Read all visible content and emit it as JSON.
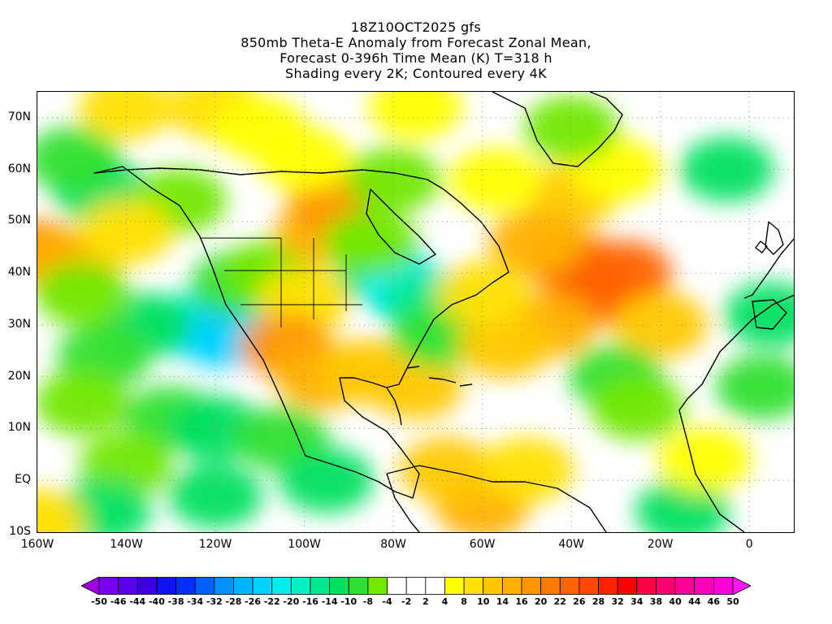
{
  "titles": [
    "18Z10OCT2025 gfs",
    "850mb Theta-E Anomaly from Forecast Zonal Mean,",
    "Forecast 0-396h Time Mean (K) T=318 h",
    "Shading every 2K; Contoured every 4K"
  ],
  "map": {
    "lon_range": [
      -160,
      10
    ],
    "lat_range": [
      -10,
      75
    ],
    "lat_ticks": [
      {
        "value": 70,
        "label": "70N"
      },
      {
        "value": 60,
        "label": "60N"
      },
      {
        "value": 50,
        "label": "50N"
      },
      {
        "value": 40,
        "label": "40N"
      },
      {
        "value": 30,
        "label": "30N"
      },
      {
        "value": 20,
        "label": "20N"
      },
      {
        "value": 10,
        "label": "10N"
      },
      {
        "value": 0,
        "label": "EQ"
      },
      {
        "value": -10,
        "label": "10S"
      }
    ],
    "lon_ticks": [
      {
        "value": -160,
        "label": "160W"
      },
      {
        "value": -140,
        "label": "140W"
      },
      {
        "value": -120,
        "label": "120W"
      },
      {
        "value": -100,
        "label": "100W"
      },
      {
        "value": -80,
        "label": "80W"
      },
      {
        "value": -60,
        "label": "60W"
      },
      {
        "value": -40,
        "label": "40W"
      },
      {
        "value": -20,
        "label": "20W"
      },
      {
        "value": 0,
        "label": "0"
      }
    ],
    "fields": [
      {
        "lon": -146,
        "lat": 56,
        "value": -12
      },
      {
        "lon": -152,
        "lat": 62,
        "value": -10
      },
      {
        "lon": -128,
        "lat": 54,
        "value": -8
      },
      {
        "lon": -160,
        "lat": 44,
        "value": 16
      },
      {
        "lon": -152,
        "lat": 42,
        "value": 14
      },
      {
        "lon": -140,
        "lat": 48,
        "value": 8
      },
      {
        "lon": -125,
        "lat": 30,
        "value": -20
      },
      {
        "lon": -118,
        "lat": 28,
        "value": -24
      },
      {
        "lon": -136,
        "lat": 30,
        "value": -14
      },
      {
        "lon": -145,
        "lat": 24,
        "value": -10
      },
      {
        "lon": -150,
        "lat": 36,
        "value": -8
      },
      {
        "lon": -115,
        "lat": 38,
        "value": -10
      },
      {
        "lon": -108,
        "lat": 40,
        "value": -6
      },
      {
        "lon": -150,
        "lat": 15,
        "value": -8
      },
      {
        "lon": -130,
        "lat": 12,
        "value": -10
      },
      {
        "lon": -120,
        "lat": 10,
        "value": -14
      },
      {
        "lon": -105,
        "lat": 8,
        "value": -10
      },
      {
        "lon": -140,
        "lat": 3,
        "value": -8
      },
      {
        "lon": -120,
        "lat": -3,
        "value": -12
      },
      {
        "lon": -145,
        "lat": -6,
        "value": -14
      },
      {
        "lon": -95,
        "lat": 0,
        "value": -12
      },
      {
        "lon": -100,
        "lat": 35,
        "value": 8
      },
      {
        "lon": -96,
        "lat": 48,
        "value": 14
      },
      {
        "lon": -93,
        "lat": 54,
        "value": 16
      },
      {
        "lon": -104,
        "lat": 26,
        "value": 16
      },
      {
        "lon": -96,
        "lat": 20,
        "value": 14
      },
      {
        "lon": -86,
        "lat": 21,
        "value": 12
      },
      {
        "lon": -75,
        "lat": 18,
        "value": 10
      },
      {
        "lon": -82,
        "lat": 40,
        "value": -14
      },
      {
        "lon": -77,
        "lat": 37,
        "value": -22
      },
      {
        "lon": -72,
        "lat": 34,
        "value": -16
      },
      {
        "lon": -85,
        "lat": 46,
        "value": -8
      },
      {
        "lon": -80,
        "lat": 58,
        "value": -6
      },
      {
        "lon": -70,
        "lat": 28,
        "value": -10
      },
      {
        "lon": -40,
        "lat": 42,
        "value": 20
      },
      {
        "lon": -28,
        "lat": 40,
        "value": 24
      },
      {
        "lon": -34,
        "lat": 36,
        "value": 22
      },
      {
        "lon": -45,
        "lat": 30,
        "value": 14
      },
      {
        "lon": -55,
        "lat": 26,
        "value": 12
      },
      {
        "lon": -40,
        "lat": 55,
        "value": 10
      },
      {
        "lon": -30,
        "lat": 60,
        "value": 6
      },
      {
        "lon": -48,
        "lat": 46,
        "value": 14
      },
      {
        "lon": -20,
        "lat": 30,
        "value": 10
      },
      {
        "lon": -60,
        "lat": 36,
        "value": 8
      },
      {
        "lon": -30,
        "lat": 20,
        "value": -10
      },
      {
        "lon": -25,
        "lat": 14,
        "value": -8
      },
      {
        "lon": 3,
        "lat": 18,
        "value": -10
      },
      {
        "lon": 5,
        "lat": 32,
        "value": -12
      },
      {
        "lon": -5,
        "lat": 60,
        "value": -12
      },
      {
        "lon": -40,
        "lat": 68,
        "value": -6
      },
      {
        "lon": -57,
        "lat": 58,
        "value": 6
      },
      {
        "lon": -60,
        "lat": -5,
        "value": 14
      },
      {
        "lon": -68,
        "lat": 2,
        "value": 10
      },
      {
        "lon": -50,
        "lat": 2,
        "value": 8
      },
      {
        "lon": -15,
        "lat": -6,
        "value": -14
      },
      {
        "lon": -10,
        "lat": 4,
        "value": 6
      },
      {
        "lon": -120,
        "lat": 72,
        "value": 8
      },
      {
        "lon": -110,
        "lat": 68,
        "value": 6
      },
      {
        "lon": -140,
        "lat": 72,
        "value": 8
      },
      {
        "lon": -75,
        "lat": 72,
        "value": 6
      },
      {
        "lon": -100,
        "lat": 62,
        "value": 4
      },
      {
        "lon": -160,
        "lat": -8,
        "value": 8
      }
    ]
  },
  "colorbar": {
    "colors": [
      "#a000e0",
      "#7800f0",
      "#5a00e8",
      "#3a00e0",
      "#1010f0",
      "#0030ff",
      "#0060ff",
      "#0090ff",
      "#00b4ff",
      "#00d2ff",
      "#00eef0",
      "#00f0c0",
      "#00e890",
      "#00e060",
      "#30e030",
      "#70e800",
      "#ffffff",
      "#ffffff",
      "#ffffff",
      "#ffff00",
      "#ffe000",
      "#ffc800",
      "#ffb000",
      "#ff9600",
      "#ff7c00",
      "#ff6200",
      "#ff4800",
      "#ff2400",
      "#ff0000",
      "#ff0044",
      "#ff0070",
      "#ff0098",
      "#ff00b8",
      "#ff00d8",
      "#ff18f0"
    ],
    "labels": [
      "-50",
      "-46",
      "-44",
      "-40",
      "-38",
      "-34",
      "-32",
      "-28",
      "-26",
      "-22",
      "-20",
      "-16",
      "-14",
      "-10",
      "-8",
      "-4",
      "-2",
      "2",
      "4",
      "8",
      "10",
      "14",
      "16",
      "20",
      "22",
      "26",
      "28",
      "32",
      "34",
      "38",
      "40",
      "44",
      "46",
      "50"
    ]
  }
}
